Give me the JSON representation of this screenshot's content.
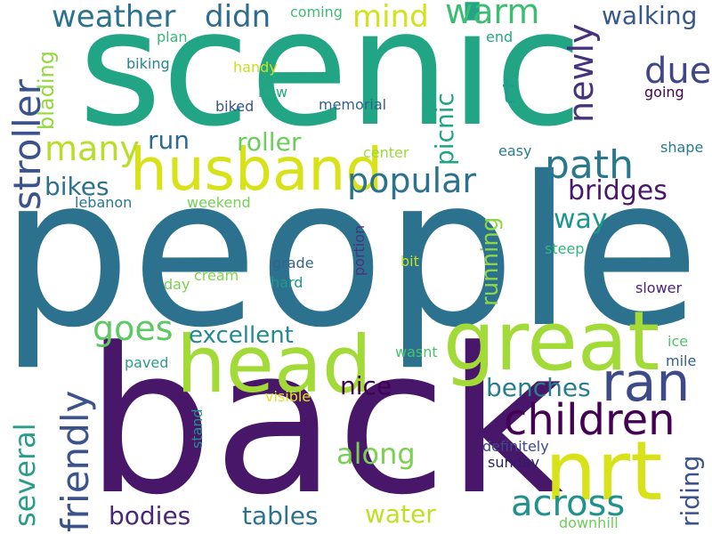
{
  "words": [
    {
      "key": "people",
      "text": "people",
      "color": "#2c728e"
    },
    {
      "key": "back",
      "text": "back",
      "color": "#481769"
    },
    {
      "key": "scenic",
      "text": "scenic",
      "color": "#21a585"
    },
    {
      "key": "great",
      "text": "great",
      "color": "#a2da37"
    },
    {
      "key": "head",
      "text": "head",
      "color": "#a2da37"
    },
    {
      "key": "nrt",
      "text": "nrt",
      "color": "#d8e219"
    },
    {
      "key": "husband",
      "text": "husband",
      "color": "#d8e219"
    },
    {
      "key": "ran",
      "text": "ran",
      "color": "#3e4989"
    },
    {
      "key": "children",
      "text": "children",
      "color": "#440154"
    },
    {
      "key": "path",
      "text": "path",
      "color": "#2a788e"
    },
    {
      "key": "popular",
      "text": "popular",
      "color": "#2c728e"
    },
    {
      "key": "stroller",
      "text": "stroller",
      "color": "#3b528b"
    },
    {
      "key": "friendly",
      "text": "friendly",
      "color": "#3b528b"
    },
    {
      "key": "several",
      "text": "several",
      "color": "#2a9d8a"
    },
    {
      "key": "across",
      "text": "across",
      "color": "#21918c"
    },
    {
      "key": "weather",
      "text": "weather",
      "color": "#2c728e"
    },
    {
      "key": "didn",
      "text": "didn",
      "color": "#2f6b8e"
    },
    {
      "key": "mind",
      "text": "mind",
      "color": "#d2e21b"
    },
    {
      "key": "warm",
      "text": "warm",
      "color": "#3dbc74"
    },
    {
      "key": "newly",
      "text": "newly",
      "color": "#46337e"
    },
    {
      "key": "walking",
      "text": "walking",
      "color": "#38588c"
    },
    {
      "key": "due",
      "text": "due",
      "color": "#3f4788"
    },
    {
      "key": "t",
      "text": "t",
      "color": "#1f9f88"
    },
    {
      "key": "many",
      "text": "many",
      "color": "#b8de29"
    },
    {
      "key": "goes",
      "text": "goes",
      "color": "#5ec962"
    },
    {
      "key": "bikes",
      "text": "bikes",
      "color": "#2d718e"
    },
    {
      "key": "run",
      "text": "run",
      "color": "#306a8e"
    },
    {
      "key": "roller",
      "text": "roller",
      "color": "#6ccd5a"
    },
    {
      "key": "bridges",
      "text": "bridges",
      "color": "#48186a"
    },
    {
      "key": "way",
      "text": "way",
      "color": "#1f968b"
    },
    {
      "key": "excellent",
      "text": "excellent",
      "color": "#238a8d"
    },
    {
      "key": "picnic",
      "text": "picnic",
      "color": "#20a386"
    },
    {
      "key": "running",
      "text": "running",
      "color": "#8ed645"
    },
    {
      "key": "blading",
      "text": "blading",
      "color": "#95d840"
    },
    {
      "key": "benches",
      "text": "benches",
      "color": "#287d8e"
    },
    {
      "key": "nice",
      "text": "nice",
      "color": "#440154"
    },
    {
      "key": "along",
      "text": "along",
      "color": "#7ad151"
    },
    {
      "key": "bodies",
      "text": "bodies",
      "color": "#482878"
    },
    {
      "key": "tables",
      "text": "tables",
      "color": "#2c728e"
    },
    {
      "key": "water",
      "text": "water",
      "color": "#c2df23"
    },
    {
      "key": "riding",
      "text": "riding",
      "color": "#3b528b"
    },
    {
      "key": "coming",
      "text": "coming",
      "color": "#3fbc73"
    },
    {
      "key": "plan",
      "text": "plan",
      "color": "#37b878"
    },
    {
      "key": "biking",
      "text": "biking",
      "color": "#25858e"
    },
    {
      "key": "handy",
      "text": "handy",
      "color": "#c8e020"
    },
    {
      "key": "new",
      "text": "new",
      "color": "#22a884"
    },
    {
      "key": "biked",
      "text": "biked",
      "color": "#3b528b"
    },
    {
      "key": "memorial",
      "text": "memorial",
      "color": "#34618d"
    },
    {
      "key": "end",
      "text": "end",
      "color": "#22a884"
    },
    {
      "key": "going",
      "text": "going",
      "color": "#440154"
    },
    {
      "key": "center",
      "text": "center",
      "color": "#9bd93c"
    },
    {
      "key": "easy",
      "text": "easy",
      "color": "#287c8e"
    },
    {
      "key": "shape",
      "text": "shape",
      "color": "#287c8e"
    },
    {
      "key": "lebanon",
      "text": "lebanon",
      "color": "#2a788e"
    },
    {
      "key": "weekend",
      "text": "weekend",
      "color": "#75d054"
    },
    {
      "key": "portion",
      "text": "portion",
      "color": "#46337e"
    },
    {
      "key": "steep",
      "text": "steep",
      "color": "#31b57b"
    },
    {
      "key": "grade",
      "text": "grade",
      "color": "#33638d"
    },
    {
      "key": "bit",
      "text": "bit",
      "color": "#c2df23"
    },
    {
      "key": "cream",
      "text": "cream",
      "color": "#84d44b"
    },
    {
      "key": "day",
      "text": "day",
      "color": "#7ad151"
    },
    {
      "key": "hard",
      "text": "hard",
      "color": "#1f998a"
    },
    {
      "key": "slower",
      "text": "slower",
      "color": "#482475"
    },
    {
      "key": "ice",
      "text": "ice",
      "color": "#50c46a"
    },
    {
      "key": "mile",
      "text": "mile",
      "color": "#34618d"
    },
    {
      "key": "paved",
      "text": "paved",
      "color": "#2c9c89"
    },
    {
      "key": "wasnt",
      "text": "wasnt",
      "color": "#4ac16d"
    },
    {
      "key": "visible",
      "text": "visible",
      "color": "#e2e418"
    },
    {
      "key": "stand",
      "text": "stand",
      "color": "#21918c"
    },
    {
      "key": "definitely",
      "text": "definitely",
      "color": "#3e4989"
    },
    {
      "key": "sunday",
      "text": "sunday",
      "color": "#2d1e6e"
    },
    {
      "key": "downhill",
      "text": "downhill",
      "color": "#6ccd5a"
    }
  ]
}
